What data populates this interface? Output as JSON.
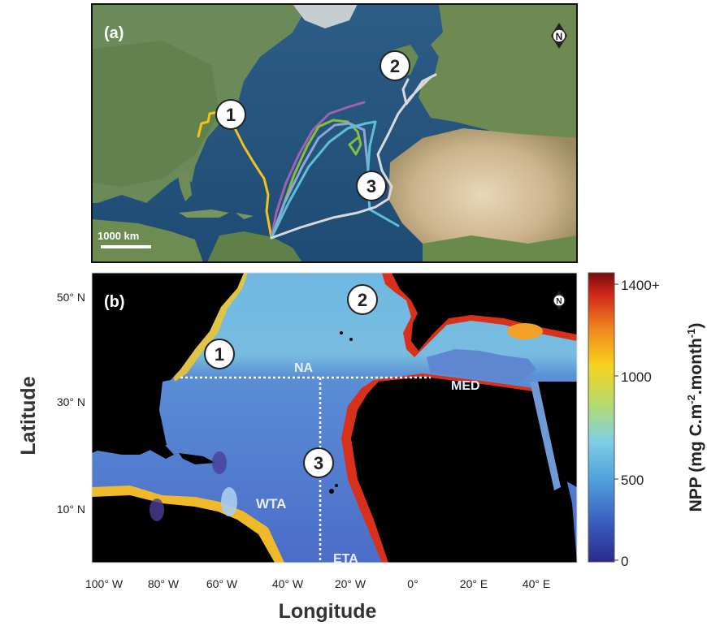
{
  "panel_a": {
    "label": "(a)",
    "scale_bar_label": "1000 km",
    "north_arrow_letter": "N",
    "markers": [
      "1",
      "2",
      "3"
    ],
    "track_colors": [
      "#f2c418",
      "#9e62b0",
      "#86bd3c",
      "#8fa6d8",
      "#5bbfd8",
      "#d9d9d9"
    ]
  },
  "panel_b": {
    "label": "(b)",
    "north_arrow_letter": "N",
    "markers": [
      "1",
      "2",
      "3"
    ],
    "regions": [
      "NA",
      "MED",
      "WTA",
      "ETA"
    ],
    "y_ticks": [
      "50° N",
      "30° N",
      "10° N"
    ],
    "x_ticks": [
      "100° W",
      "80° W",
      "60° W",
      "40° W",
      "20° W",
      "0°",
      "20° E",
      "40° E"
    ],
    "y_axis_label": "Latitude",
    "x_axis_label": "Longitude"
  },
  "colorbar": {
    "tick_labels": [
      "1400+",
      "1000",
      "500",
      "0"
    ],
    "title_main": "NPP (mg C.m",
    "title_sup1": "-2",
    "title_mid": ".month",
    "title_sup2": "-1",
    "title_end": ")"
  }
}
